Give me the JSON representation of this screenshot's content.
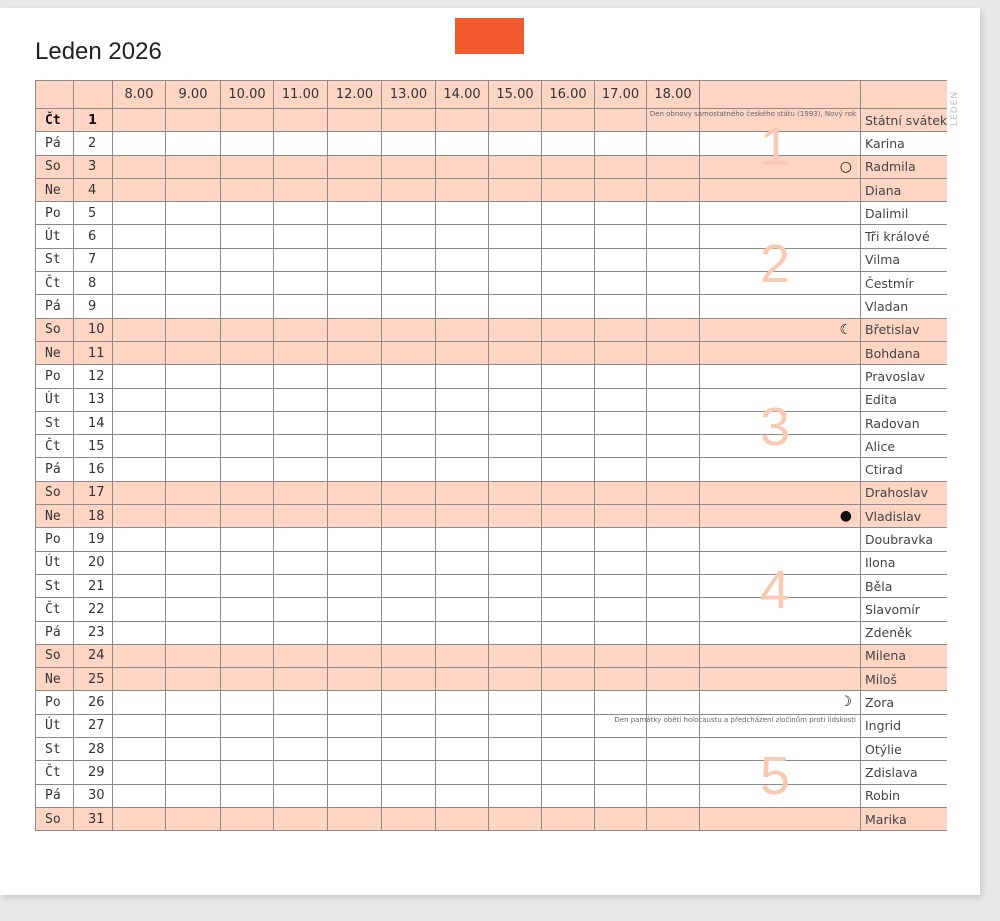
{
  "title": "Leden 2026",
  "side_label": "LEDEN",
  "colors": {
    "accent": "#f05a2c",
    "weekend_fill": "#fdd5c2",
    "week_number": "#f8c9b3"
  },
  "hours": [
    "8.00",
    "9.00",
    "10.00",
    "11.00",
    "12.00",
    "13.00",
    "14.00",
    "15.00",
    "16.00",
    "17.00",
    "18.00"
  ],
  "days": [
    {
      "day": "Čt",
      "num": "1",
      "name": "Státní svátek",
      "shaded": true,
      "bold": true,
      "note": "Den obnovy samostatného českého státu (1993), Nový rok"
    },
    {
      "day": "Pá",
      "num": "2",
      "name": "Karina"
    },
    {
      "day": "So",
      "num": "3",
      "name": "Radmila",
      "shaded": true,
      "moon": "full-moon-icon"
    },
    {
      "day": "Ne",
      "num": "4",
      "name": "Diana",
      "shaded": true
    },
    {
      "day": "Po",
      "num": "5",
      "name": "Dalimil"
    },
    {
      "day": "Út",
      "num": "6",
      "name": "Tři králové"
    },
    {
      "day": "St",
      "num": "7",
      "name": "Vilma"
    },
    {
      "day": "Čt",
      "num": "8",
      "name": "Čestmír"
    },
    {
      "day": "Pá",
      "num": "9",
      "name": "Vladan"
    },
    {
      "day": "So",
      "num": "10",
      "name": "Břetislav",
      "shaded": true,
      "moon": "last-quarter-moon-icon"
    },
    {
      "day": "Ne",
      "num": "11",
      "name": "Bohdana",
      "shaded": true
    },
    {
      "day": "Po",
      "num": "12",
      "name": "Pravoslav"
    },
    {
      "day": "Út",
      "num": "13",
      "name": "Edita"
    },
    {
      "day": "St",
      "num": "14",
      "name": "Radovan"
    },
    {
      "day": "Čt",
      "num": "15",
      "name": "Alice"
    },
    {
      "day": "Pá",
      "num": "16",
      "name": "Ctirad"
    },
    {
      "day": "So",
      "num": "17",
      "name": "Drahoslav",
      "shaded": true
    },
    {
      "day": "Ne",
      "num": "18",
      "name": "Vladislav",
      "shaded": true,
      "moon": "new-moon-icon"
    },
    {
      "day": "Po",
      "num": "19",
      "name": "Doubravka"
    },
    {
      "day": "Út",
      "num": "20",
      "name": "Ilona"
    },
    {
      "day": "St",
      "num": "21",
      "name": "Běla"
    },
    {
      "day": "Čt",
      "num": "22",
      "name": "Slavomír"
    },
    {
      "day": "Pá",
      "num": "23",
      "name": "Zdeněk"
    },
    {
      "day": "So",
      "num": "24",
      "name": "Milena",
      "shaded": true
    },
    {
      "day": "Ne",
      "num": "25",
      "name": "Miloš",
      "shaded": true
    },
    {
      "day": "Po",
      "num": "26",
      "name": "Zora",
      "moon": "first-quarter-moon-icon"
    },
    {
      "day": "Út",
      "num": "27",
      "name": "Ingrid",
      "note": "Den památky obětí holocaustu a předcházení zločinům proti lidskosti"
    },
    {
      "day": "St",
      "num": "28",
      "name": "Otýlie"
    },
    {
      "day": "Čt",
      "num": "29",
      "name": "Zdislava"
    },
    {
      "day": "Pá",
      "num": "30",
      "name": "Robin"
    },
    {
      "day": "So",
      "num": "31",
      "name": "Marika",
      "shaded": true
    }
  ],
  "week_numbers": [
    {
      "label": "1",
      "row": 1
    },
    {
      "label": "2",
      "row": 6
    },
    {
      "label": "3",
      "row": 13
    },
    {
      "label": "4",
      "row": 20
    },
    {
      "label": "5",
      "row": 28
    }
  ]
}
